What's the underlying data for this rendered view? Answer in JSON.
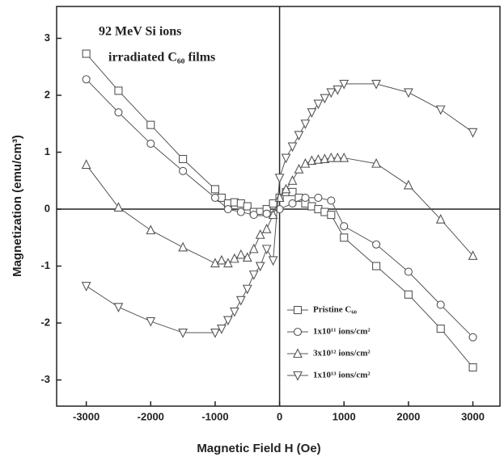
{
  "chart_data": {
    "type": "line",
    "x_label": "Magnetic Field H (Oe)",
    "y_label": "Magnetization (emu/cm³)",
    "annotations": [
      "92 MeV Si ions",
      "irradiated C₆₀ films"
    ],
    "xlim": [
      -3460,
      3420
    ],
    "ylim": [
      -3.46,
      3.56
    ],
    "xticks": [
      -3000,
      -2000,
      -1000,
      0,
      1000,
      2000,
      3000
    ],
    "yticks": [
      -3,
      -2,
      -1,
      0,
      1,
      2,
      3
    ],
    "legend": "lower right",
    "series": [
      {
        "name": "Pristine C₆₀",
        "color": "#555555",
        "marker": "square",
        "x": [
          -3000,
          -2500,
          -2000,
          -1500,
          -1000,
          -900,
          -800,
          -700,
          -600,
          -500,
          -400,
          -300,
          -200,
          -100,
          0,
          100,
          200,
          300,
          400,
          500,
          600,
          700,
          800,
          1000,
          1500,
          2000,
          2500,
          3000
        ],
        "values": [
          2.73,
          2.08,
          1.48,
          0.88,
          0.35,
          0.2,
          0.1,
          0.12,
          0.1,
          0.05,
          -0.05,
          -0.05,
          0.0,
          0.1,
          0.2,
          0.3,
          0.3,
          0.2,
          0.1,
          0.05,
          0.0,
          -0.05,
          -0.1,
          -0.5,
          -1.0,
          -1.5,
          -2.1,
          -2.78
        ]
      },
      {
        "name": "1x10¹¹ ions/cm²",
        "color": "#555555",
        "marker": "circle",
        "x": [
          -3000,
          -2500,
          -2000,
          -1500,
          -1000,
          -800,
          -600,
          -400,
          -200,
          0,
          200,
          400,
          600,
          800,
          1000,
          1500,
          2000,
          2500,
          3000
        ],
        "values": [
          2.28,
          1.7,
          1.15,
          0.67,
          0.2,
          0.0,
          -0.05,
          -0.1,
          -0.08,
          0.0,
          0.1,
          0.2,
          0.2,
          0.15,
          -0.3,
          -0.62,
          -1.1,
          -1.68,
          -2.25
        ]
      },
      {
        "name": "3x10¹² ions/cm²",
        "color": "#555555",
        "marker": "triangle",
        "x": [
          -3000,
          -2500,
          -2000,
          -1500,
          -1000,
          -900,
          -800,
          -700,
          -600,
          -500,
          -400,
          -300,
          -200,
          -100,
          0,
          100,
          200,
          300,
          400,
          500,
          600,
          700,
          800,
          900,
          1000,
          1500,
          2000,
          2500,
          3000
        ],
        "values": [
          0.78,
          0.03,
          -0.37,
          -0.67,
          -0.95,
          -0.9,
          -0.95,
          -0.87,
          -0.8,
          -0.85,
          -0.7,
          -0.45,
          -0.35,
          -0.1,
          0.2,
          0.35,
          0.5,
          0.7,
          0.8,
          0.85,
          0.87,
          0.88,
          0.9,
          0.9,
          0.9,
          0.8,
          0.42,
          -0.18,
          -0.82
        ]
      },
      {
        "name": "1x10¹³ ions/cm²",
        "color": "#555555",
        "marker": "triangle-down",
        "x": [
          -3000,
          -2500,
          -2000,
          -1500,
          -1000,
          -900,
          -800,
          -700,
          -600,
          -500,
          -400,
          -300,
          -200,
          -100,
          0,
          100,
          200,
          300,
          400,
          500,
          600,
          700,
          800,
          900,
          1000,
          1500,
          2000,
          2500,
          3000
        ],
        "values": [
          -1.35,
          -1.72,
          -1.97,
          -2.17,
          -2.17,
          -2.1,
          -1.95,
          -1.8,
          -1.6,
          -1.4,
          -1.15,
          -1.0,
          -0.7,
          -0.9,
          0.55,
          0.9,
          1.1,
          1.3,
          1.5,
          1.7,
          1.85,
          1.95,
          2.05,
          2.1,
          2.2,
          2.2,
          2.05,
          1.75,
          1.35
        ]
      }
    ]
  }
}
